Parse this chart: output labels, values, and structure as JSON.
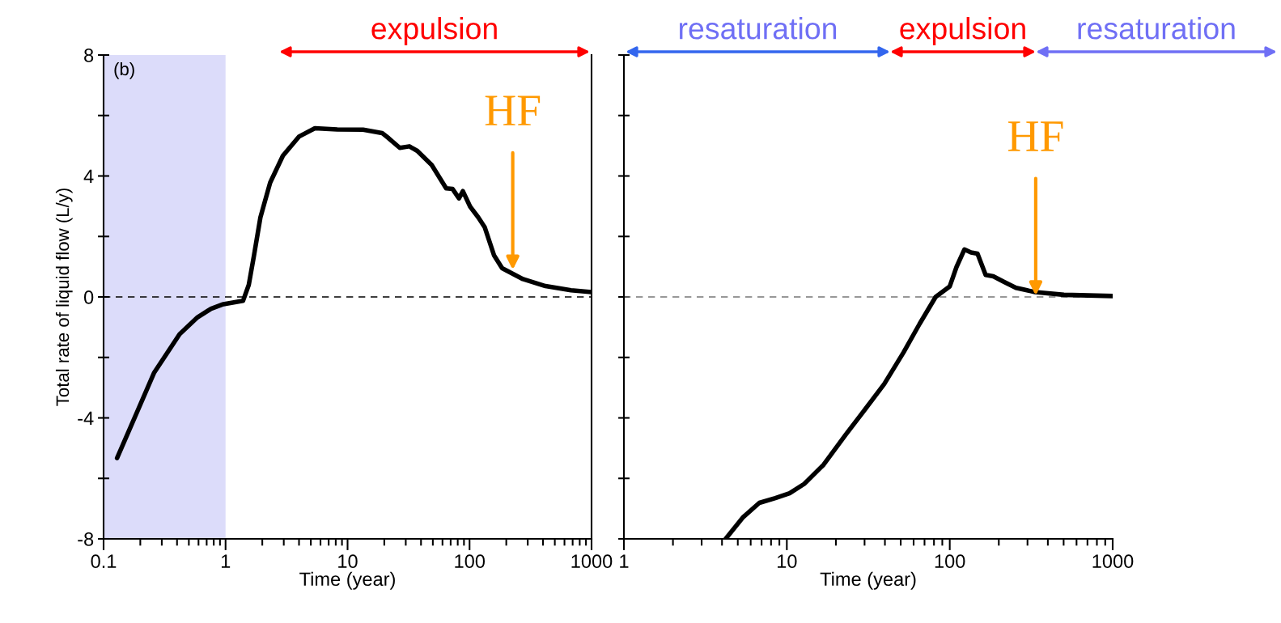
{
  "chart_data": [
    {
      "type": "line",
      "xlabel": "Time (year)",
      "ylabel": "Total rate of liquid flow (L/y)",
      "log": "x",
      "xlim": [
        0.1,
        1000
      ],
      "xticks": [
        0.1,
        1,
        10,
        100,
        1000
      ],
      "ylim": [
        -8,
        8
      ],
      "yticks": [
        -8,
        {
          "value": -6,
          "label": null
        },
        -4,
        {
          "value": -2,
          "label": null
        },
        0,
        {
          "value": 2,
          "label": null
        },
        4,
        {
          "value": 6,
          "label": null
        },
        8
      ],
      "grid": false,
      "series": [
        {
          "color": "#000000",
          "x": [
            0.129,
            0.26,
            0.42,
            0.59,
            0.76,
            0.94,
            1.39,
            1.55,
            1.71,
            1.93,
            2.32,
            2.95,
            3.99,
            5.4,
            8.24,
            13.4,
            19.2,
            21.7,
            26.8,
            32.1,
            37.3,
            49.0,
            64.3,
            72.6,
            81.9,
            88.1,
            101,
            118,
            133,
            159,
            185,
            274,
            419,
            679,
            1000
          ],
          "values": [
            -5.33,
            -2.5,
            -1.23,
            -0.67,
            -0.39,
            -0.25,
            -0.13,
            0.4,
            1.37,
            2.63,
            3.78,
            4.67,
            5.3,
            5.58,
            5.54,
            5.53,
            5.42,
            5.25,
            4.93,
            4.98,
            4.83,
            4.36,
            3.59,
            3.57,
            3.26,
            3.5,
            2.99,
            2.63,
            2.31,
            1.37,
            0.95,
            0.59,
            0.36,
            0.22,
            0.16
          ]
        }
      ],
      "ref_lines": [
        {
          "axis": "y",
          "value": 0,
          "color": "#000000",
          "line_style": "dashed"
        }
      ],
      "bands": [
        {
          "axis": "x",
          "from": 0.1,
          "to": 1,
          "color": "#dcdcfa"
        }
      ],
      "annotations": [
        "(b)",
        "expulsion",
        {
          "text": "HF",
          "x": 226,
          "y": 0.9
        }
      ]
    },
    {
      "type": "line",
      "xlabel": "Time (year)",
      "log": "x",
      "tick_labels": "x",
      "xlim": [
        1,
        1000
      ],
      "xticks": [
        1,
        10,
        100,
        1000
      ],
      "ylim": [
        -8,
        8
      ],
      "yticks": [
        -8,
        -6,
        -4,
        -2,
        0,
        2,
        4,
        6,
        8
      ],
      "grid": false,
      "series": [
        {
          "color": "#000000",
          "x": [
            4.21,
            5.4,
            6.78,
            8.5,
            10.4,
            12.8,
            16.8,
            23.0,
            30.2,
            39.6,
            52.1,
            65.3,
            81.9,
            100,
            110,
            123,
            135,
            148,
            166,
            185,
            217,
            255,
            334,
            502,
            1000
          ],
          "values": [
            -8.0,
            -7.28,
            -6.81,
            -6.65,
            -6.49,
            -6.18,
            -5.55,
            -4.55,
            -3.72,
            -2.88,
            -1.83,
            -0.89,
            0.0,
            0.35,
            0.99,
            1.57,
            1.47,
            1.43,
            0.73,
            0.68,
            0.49,
            0.3,
            0.16,
            0.07,
            0.03
          ]
        }
      ],
      "ref_lines": [
        {
          "axis": "y",
          "value": 0,
          "color": "#777777",
          "line_style": "dashed"
        }
      ],
      "annotations": [
        "resaturation",
        "expulsion",
        "resaturation",
        {
          "text": "HF",
          "x": 337,
          "y": 0.05
        }
      ]
    }
  ]
}
